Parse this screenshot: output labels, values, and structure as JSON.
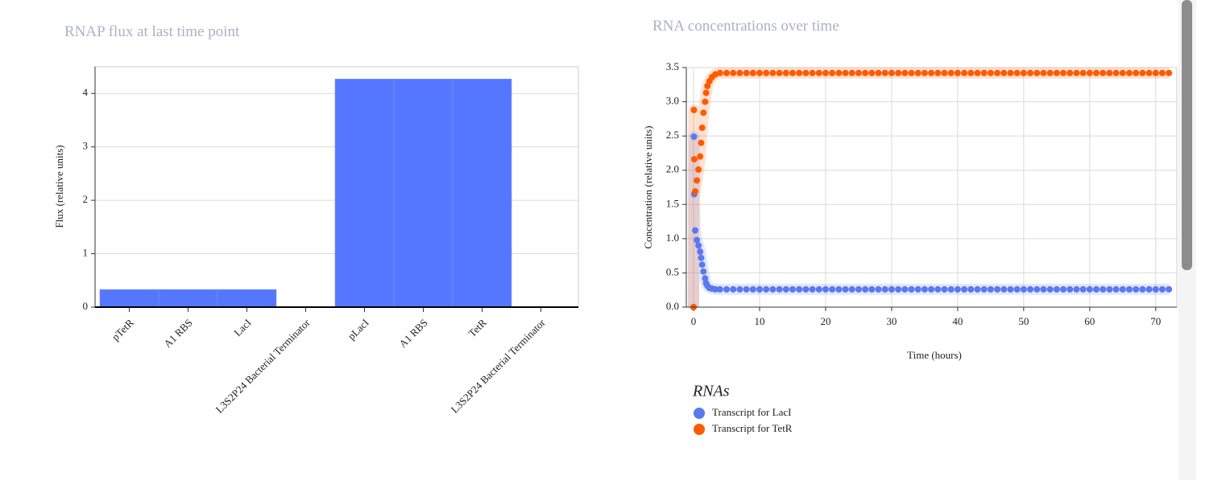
{
  "chart_data": [
    {
      "type": "bar",
      "title": "RNAP flux at last time point",
      "ylabel": "Flux (relative units)",
      "categories": [
        "pTetR",
        "A1 RBS",
        "LacI",
        "L3S2P24 Bacterial Terminator",
        "pLacI",
        "A1 RBS",
        "TetR",
        "L3S2P24 Bacterial Terminator"
      ],
      "values": [
        0.33,
        0.33,
        0.33,
        0,
        4.27,
        4.27,
        4.27,
        0
      ],
      "color": "#5577ff",
      "ylim": [
        0,
        4.5
      ],
      "yticks": [
        0,
        1,
        2,
        3,
        4
      ],
      "grid": true
    },
    {
      "type": "scatter",
      "title": "RNA concentrations over time",
      "xlabel": "Time (hours)",
      "ylabel": "Concentration (relative units)",
      "legend_title": "RNAs",
      "x": [
        0,
        0.05,
        0.1,
        0.25,
        0.5,
        0.75,
        1,
        1.15,
        1.3,
        1.5,
        1.75,
        1.9,
        2.1,
        2.4,
        2.8,
        3.3,
        4,
        5,
        6,
        7,
        8,
        9,
        10,
        11,
        12,
        13,
        14,
        15,
        16,
        17,
        18,
        19,
        20,
        21,
        22,
        23,
        24,
        25,
        26,
        27,
        28,
        29,
        30,
        31,
        32,
        33,
        34,
        35,
        36,
        37,
        38,
        39,
        40,
        41,
        42,
        43,
        44,
        45,
        46,
        47,
        48,
        49,
        50,
        51,
        52,
        53,
        54,
        55,
        56,
        57,
        58,
        59,
        60,
        61,
        62,
        63,
        64,
        65,
        66,
        67,
        68,
        69,
        70,
        71,
        72
      ],
      "series": [
        {
          "name": "Transcript for LacI",
          "color": "#5a78f0",
          "values": [
            0,
            2.49,
            1.65,
            1.12,
            0.98,
            0.9,
            0.81,
            0.72,
            0.62,
            0.52,
            0.42,
            0.35,
            0.31,
            0.28,
            0.27,
            0.26,
            0.26,
            0.26,
            0.26,
            0.26,
            0.26,
            0.26,
            0.26,
            0.26,
            0.26,
            0.26,
            0.26,
            0.26,
            0.26,
            0.26,
            0.26,
            0.26,
            0.26,
            0.26,
            0.26,
            0.26,
            0.26,
            0.26,
            0.26,
            0.26,
            0.26,
            0.26,
            0.26,
            0.26,
            0.26,
            0.26,
            0.26,
            0.26,
            0.26,
            0.26,
            0.26,
            0.26,
            0.26,
            0.26,
            0.26,
            0.26,
            0.26,
            0.26,
            0.26,
            0.26,
            0.26,
            0.26,
            0.26,
            0.26,
            0.26,
            0.26,
            0.26,
            0.26,
            0.26,
            0.26,
            0.26,
            0.26,
            0.26,
            0.26,
            0.26,
            0.26,
            0.26,
            0.26,
            0.26,
            0.26,
            0.26,
            0.26,
            0.26,
            0.26,
            0.26
          ]
        },
        {
          "name": "Transcript for TetR",
          "color": "#ff5a00",
          "values": [
            0,
            2.88,
            2.16,
            1.69,
            1.85,
            2.01,
            2.2,
            2.4,
            2.62,
            2.84,
            3.0,
            3.13,
            3.23,
            3.3,
            3.36,
            3.4,
            3.42,
            3.42,
            3.42,
            3.42,
            3.42,
            3.42,
            3.42,
            3.42,
            3.42,
            3.42,
            3.42,
            3.42,
            3.42,
            3.42,
            3.42,
            3.42,
            3.42,
            3.42,
            3.42,
            3.42,
            3.42,
            3.42,
            3.42,
            3.42,
            3.42,
            3.42,
            3.42,
            3.42,
            3.42,
            3.42,
            3.42,
            3.42,
            3.42,
            3.42,
            3.42,
            3.42,
            3.42,
            3.42,
            3.42,
            3.42,
            3.42,
            3.42,
            3.42,
            3.42,
            3.42,
            3.42,
            3.42,
            3.42,
            3.42,
            3.42,
            3.42,
            3.42,
            3.42,
            3.42,
            3.42,
            3.42,
            3.42,
            3.42,
            3.42,
            3.42,
            3.42,
            3.42,
            3.42,
            3.42,
            3.42,
            3.42,
            3.42,
            3.42,
            3.42
          ]
        }
      ],
      "xlim": [
        -1.1,
        73.2
      ],
      "xticks": [
        0,
        10,
        20,
        30,
        40,
        50,
        60,
        70
      ],
      "ylim": [
        0,
        3.5
      ],
      "yticks": [
        {
          "value": 0,
          "label": "0.0"
        },
        0.5,
        {
          "value": 1,
          "label": "1.0"
        },
        1.5,
        {
          "value": 2,
          "label": "2.0"
        },
        2.5,
        {
          "value": 3,
          "label": "3.0"
        },
        3.5
      ],
      "grid": true
    }
  ]
}
